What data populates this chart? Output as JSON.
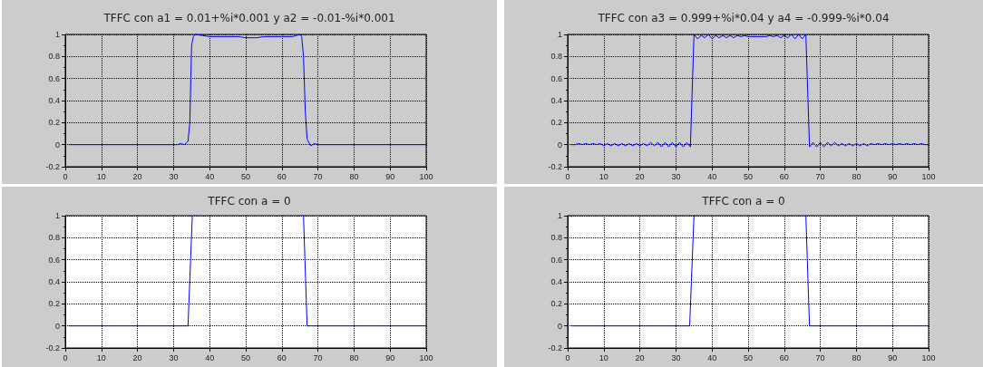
{
  "chart_data": [
    {
      "type": "line",
      "title": "TFFC con a1 = 0.01+%i*0.001 y a2 = -0.01-%i*0.001",
      "x": [
        1,
        31,
        32,
        33,
        34,
        34.5,
        35,
        35.5,
        36,
        38,
        40,
        48,
        50,
        53,
        55,
        60,
        63,
        64,
        65,
        65.5,
        66,
        66.5,
        67,
        68,
        69,
        70,
        100
      ],
      "series": [
        {
          "color": "#0000ff",
          "values": [
            0,
            0,
            0.01,
            0,
            0.03,
            0.2,
            0.9,
            0.98,
            1,
            0.99,
            0.98,
            0.98,
            0.97,
            0.97,
            0.98,
            0.98,
            0.98,
            0.99,
            1,
            0.98,
            0.8,
            0.3,
            0.05,
            -0.01,
            0.01,
            0,
            0
          ]
        }
      ],
      "xlim": [
        0,
        100
      ],
      "xticks": [
        0,
        10,
        20,
        30,
        40,
        50,
        60,
        70,
        80,
        90,
        100
      ],
      "ylim": [
        -0.2,
        1
      ],
      "yticks": [
        -0.2,
        0,
        0.2,
        0.4,
        0.6,
        0.8,
        1
      ],
      "grid": true,
      "marker": "none",
      "line_style": "solid"
    },
    {
      "type": "line",
      "title": "TFFC con a3 = 0.999+%i*0.04 y a4 = -0.999-%i*0.04",
      "x": [
        1,
        2,
        3,
        4,
        5,
        6,
        7,
        8,
        9,
        10,
        11,
        12,
        13,
        14,
        15,
        16,
        17,
        18,
        19,
        20,
        21,
        22,
        23,
        24,
        25,
        26,
        27,
        28,
        29,
        30,
        31,
        32,
        33,
        34,
        35,
        36,
        37,
        38,
        39,
        40,
        41,
        42,
        43,
        44,
        45,
        46,
        47,
        48,
        49,
        50,
        51,
        52,
        53,
        54,
        55,
        56,
        57,
        58,
        59,
        60,
        61,
        62,
        63,
        64,
        65,
        66,
        67,
        68,
        69,
        70,
        71,
        72,
        73,
        74,
        75,
        76,
        77,
        78,
        79,
        80,
        81,
        82,
        83,
        84,
        85,
        86,
        87,
        88,
        89,
        90,
        91,
        92,
        93,
        94,
        95,
        96,
        97,
        98,
        99,
        100
      ],
      "series": [
        {
          "color": "#0000ff",
          "values": [
            0,
            0,
            0.01,
            0,
            0.01,
            0,
            0.01,
            0,
            0.01,
            -0.01,
            0.01,
            -0.01,
            0.01,
            -0.01,
            0.01,
            -0.01,
            0.01,
            -0.01,
            0.01,
            -0.01,
            0.01,
            -0.01,
            0.02,
            -0.01,
            0.02,
            -0.02,
            0.02,
            -0.02,
            0.02,
            -0.02,
            0.02,
            -0.02,
            0.02,
            -0.02,
            1,
            0.96,
            0.99,
            0.97,
            1,
            0.96,
            0.99,
            0.97,
            0.99,
            0.97,
            0.99,
            0.97,
            0.99,
            0.98,
            0.99,
            0.98,
            0.98,
            0.98,
            0.98,
            0.98,
            0.98,
            0.99,
            0.98,
            0.99,
            0.97,
            0.99,
            0.97,
            1,
            0.96,
            1,
            0.96,
            1,
            -0.02,
            0.02,
            -0.02,
            0.02,
            -0.02,
            0.02,
            -0.01,
            0.02,
            -0.01,
            0.01,
            -0.01,
            0.01,
            -0.01,
            0.01,
            -0.01,
            0.01,
            -0.01,
            0.01,
            0,
            0.01,
            0,
            0.01,
            0,
            0.01,
            0,
            0.01,
            0,
            0.01,
            0,
            0.01,
            0,
            0.01,
            0,
            0
          ]
        }
      ],
      "xlim": [
        0,
        100
      ],
      "xticks": [
        0,
        10,
        20,
        30,
        40,
        50,
        60,
        70,
        80,
        90,
        100
      ],
      "ylim": [
        -0.2,
        1
      ],
      "yticks": [
        -0.2,
        0,
        0.2,
        0.4,
        0.6,
        0.8,
        1
      ],
      "grid": true,
      "marker": "none",
      "line_style": "solid"
    },
    {
      "type": "line",
      "title": "TFFC con a = 0",
      "x": [
        1,
        34,
        35.2,
        50,
        66,
        67,
        100
      ],
      "series": [
        {
          "color": "#0000ff",
          "values": [
            0,
            0,
            1,
            null,
            1,
            0,
            0
          ]
        }
      ],
      "xlim": [
        0,
        100
      ],
      "xticks": [
        0,
        10,
        20,
        30,
        40,
        50,
        60,
        70,
        80,
        90,
        100
      ],
      "ylim": [
        -0.2,
        1
      ],
      "yticks": [
        -0.2,
        0,
        0.2,
        0.4,
        0.6,
        0.8,
        1
      ],
      "grid": true,
      "marker": "none",
      "line_style": "solid"
    },
    {
      "type": "line",
      "title": "TFFC con a = 0",
      "x": [
        1,
        33.8,
        35,
        50,
        66,
        67,
        100
      ],
      "series": [
        {
          "color": "#0000ff",
          "values": [
            0,
            0,
            1,
            null,
            1,
            0,
            0
          ]
        }
      ],
      "xlim": [
        0,
        100
      ],
      "xticks": [
        0,
        10,
        20,
        30,
        40,
        50,
        60,
        70,
        80,
        90,
        100
      ],
      "ylim": [
        -0.2,
        1
      ],
      "yticks": [
        -0.2,
        0,
        0.2,
        0.4,
        0.6,
        0.8,
        1
      ],
      "grid": true,
      "marker": "none",
      "line_style": "solid"
    }
  ]
}
